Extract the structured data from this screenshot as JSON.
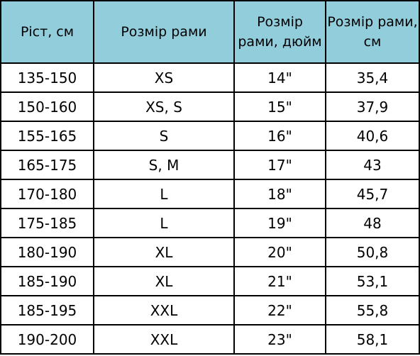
{
  "table": {
    "headers": [
      "Ріст, см",
      "Розмір рами",
      "Розмір рами, дюйм",
      "Розмір рами, см"
    ],
    "rows": [
      [
        "135-150",
        "XS",
        "14\"",
        "35,4"
      ],
      [
        "150-160",
        "XS, S",
        "15\"",
        "37,9"
      ],
      [
        "155-165",
        "S",
        "16\"",
        "40,6"
      ],
      [
        "165-175",
        "S, M",
        "17\"",
        "43"
      ],
      [
        "170-180",
        "L",
        "18\"",
        "45,7"
      ],
      [
        "175-185",
        "L",
        "19\"",
        "48"
      ],
      [
        "180-190",
        "XL",
        "20\"",
        "50,8"
      ],
      [
        "185-190",
        "XL",
        "21\"",
        "53,1"
      ],
      [
        "185-195",
        "XXL",
        "22\"",
        "55,8"
      ],
      [
        "190-200",
        "XXL",
        "23\"",
        "58,1"
      ]
    ]
  },
  "colors": {
    "header_background": "#92cddc",
    "border": "#000000"
  }
}
